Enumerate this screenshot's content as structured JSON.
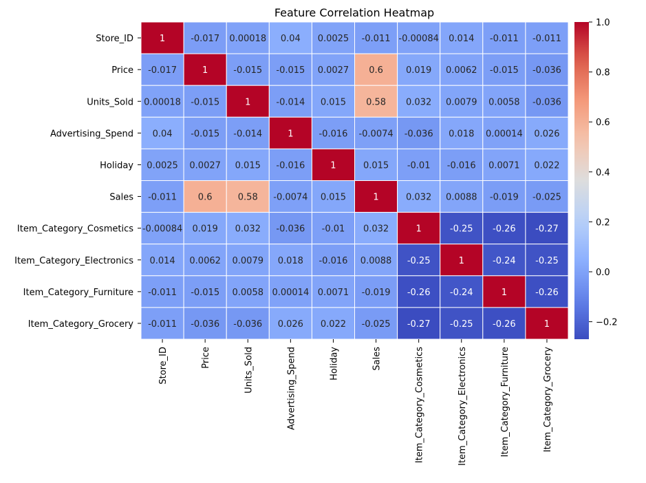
{
  "chart_data": {
    "type": "heatmap",
    "title": "Feature Correlation Heatmap",
    "xlabel": "",
    "ylabel": "",
    "labels": [
      "Store_ID",
      "Price",
      "Units_Sold",
      "Advertising_Spend",
      "Holiday",
      "Sales",
      "Item_Category_Cosmetics",
      "Item_Category_Electronics",
      "Item_Category_Furniture",
      "Item_Category_Grocery"
    ],
    "values": [
      [
        1,
        -0.017,
        0.00018,
        0.04,
        0.0025,
        -0.011,
        -0.00084,
        0.014,
        -0.011,
        -0.011
      ],
      [
        -0.017,
        1,
        -0.015,
        -0.015,
        0.0027,
        0.6,
        0.019,
        0.0062,
        -0.015,
        -0.036
      ],
      [
        0.00018,
        -0.015,
        1,
        -0.014,
        0.015,
        0.58,
        0.032,
        0.0079,
        0.0058,
        -0.036
      ],
      [
        0.04,
        -0.015,
        -0.014,
        1,
        -0.016,
        -0.0074,
        -0.036,
        0.018,
        0.00014,
        0.026
      ],
      [
        0.0025,
        0.0027,
        0.015,
        -0.016,
        1,
        0.015,
        -0.01,
        -0.016,
        0.0071,
        0.022
      ],
      [
        -0.011,
        0.6,
        0.58,
        -0.0074,
        0.015,
        1,
        0.032,
        0.0088,
        -0.019,
        -0.025
      ],
      [
        -0.00084,
        0.019,
        0.032,
        -0.036,
        -0.01,
        0.032,
        1,
        -0.25,
        -0.26,
        -0.27
      ],
      [
        0.014,
        0.0062,
        0.0079,
        0.018,
        -0.016,
        0.0088,
        -0.25,
        1,
        -0.24,
        -0.25
      ],
      [
        -0.011,
        -0.015,
        0.0058,
        0.00014,
        0.0071,
        -0.019,
        -0.26,
        -0.24,
        1,
        -0.26
      ],
      [
        -0.011,
        -0.036,
        -0.036,
        0.026,
        0.022,
        -0.025,
        -0.27,
        -0.25,
        -0.26,
        1
      ]
    ],
    "colormap": "coolwarm",
    "vmin": -0.27,
    "vmax": 1.0,
    "colorbar_ticks": [
      "1.0",
      "0.8",
      "0.6",
      "0.4",
      "0.2",
      "0.0",
      "−0.2"
    ],
    "colorbar_tick_values": [
      1.0,
      0.8,
      0.6,
      0.4,
      0.2,
      0.0,
      -0.2
    ],
    "cell_labels": [
      [
        "1",
        "-0.017",
        "0.00018",
        "0.04",
        "0.0025",
        "-0.011",
        "-0.00084",
        "0.014",
        "-0.011",
        "-0.011"
      ],
      [
        "-0.017",
        "1",
        "-0.015",
        "-0.015",
        "0.0027",
        "0.6",
        "0.019",
        "0.0062",
        "-0.015",
        "-0.036"
      ],
      [
        "0.00018",
        "-0.015",
        "1",
        "-0.014",
        "0.015",
        "0.58",
        "0.032",
        "0.0079",
        "0.0058",
        "-0.036"
      ],
      [
        "0.04",
        "-0.015",
        "-0.014",
        "1",
        "-0.016",
        "-0.0074",
        "-0.036",
        "0.018",
        "0.00014",
        "0.026"
      ],
      [
        "0.0025",
        "0.0027",
        "0.015",
        "-0.016",
        "1",
        "0.015",
        "-0.01",
        "-0.016",
        "0.0071",
        "0.022"
      ],
      [
        "-0.011",
        "0.6",
        "0.58",
        "-0.0074",
        "0.015",
        "1",
        "0.032",
        "0.0088",
        "-0.019",
        "-0.025"
      ],
      [
        "-0.00084",
        "0.019",
        "0.032",
        "-0.036",
        "-0.01",
        "0.032",
        "1",
        "-0.25",
        "-0.26",
        "-0.27"
      ],
      [
        "0.014",
        "0.0062",
        "0.0079",
        "0.018",
        "-0.016",
        "0.0088",
        "-0.25",
        "1",
        "-0.24",
        "-0.25"
      ],
      [
        "-0.011",
        "-0.015",
        "0.0058",
        "0.00014",
        "0.0071",
        "-0.019",
        "-0.26",
        "-0.24",
        "1",
        "-0.26"
      ],
      [
        "-0.011",
        "-0.036",
        "-0.036",
        "0.026",
        "0.022",
        "-0.025",
        "-0.27",
        "-0.25",
        "-0.26",
        "1"
      ]
    ],
    "grid": true,
    "legend": "colorbar-right"
  }
}
